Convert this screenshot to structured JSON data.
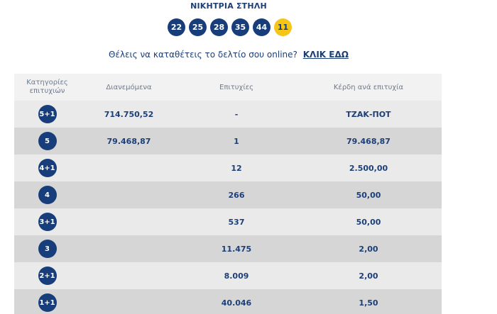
{
  "header": {
    "title": "ΝΙΚΗΤΡΙΑ ΣΤΗΛΗ",
    "numbers": [
      "22",
      "25",
      "28",
      "35",
      "44"
    ],
    "joker": "11"
  },
  "online": {
    "text": "Θέλεις να καταθέτεις το δελτίο σου online?",
    "link": "ΚΛΙΚ ΕΔΩ"
  },
  "table": {
    "headers": {
      "category_line1": "Κατηγορίες",
      "category_line2": "επιτυχιών",
      "distributed": "Διανεμόμενα",
      "winners": "Επιτυχίες",
      "prize": "Κέρδη ανά επιτυχία"
    },
    "rows": [
      {
        "category": "5+1",
        "distributed": "714.750,52",
        "winners": "-",
        "prize": "ΤΖΑΚ-ΠΟΤ"
      },
      {
        "category": "5",
        "distributed": "79.468,87",
        "winners": "1",
        "prize": "79.468,87"
      },
      {
        "category": "4+1",
        "distributed": "",
        "winners": "12",
        "prize": "2.500,00"
      },
      {
        "category": "4",
        "distributed": "",
        "winners": "266",
        "prize": "50,00"
      },
      {
        "category": "3+1",
        "distributed": "",
        "winners": "537",
        "prize": "50,00"
      },
      {
        "category": "3",
        "distributed": "",
        "winners": "11.475",
        "prize": "2,00"
      },
      {
        "category": "2+1",
        "distributed": "",
        "winners": "8.009",
        "prize": "2,00"
      },
      {
        "category": "1+1",
        "distributed": "",
        "winners": "40.046",
        "prize": "1,50"
      }
    ]
  },
  "colors": {
    "navy": "#173d7a",
    "joker_yellow": "#f5c518",
    "row_light": "#eaeaea",
    "row_dark": "#d6d6d6",
    "header_bg": "#f2f2f2"
  }
}
